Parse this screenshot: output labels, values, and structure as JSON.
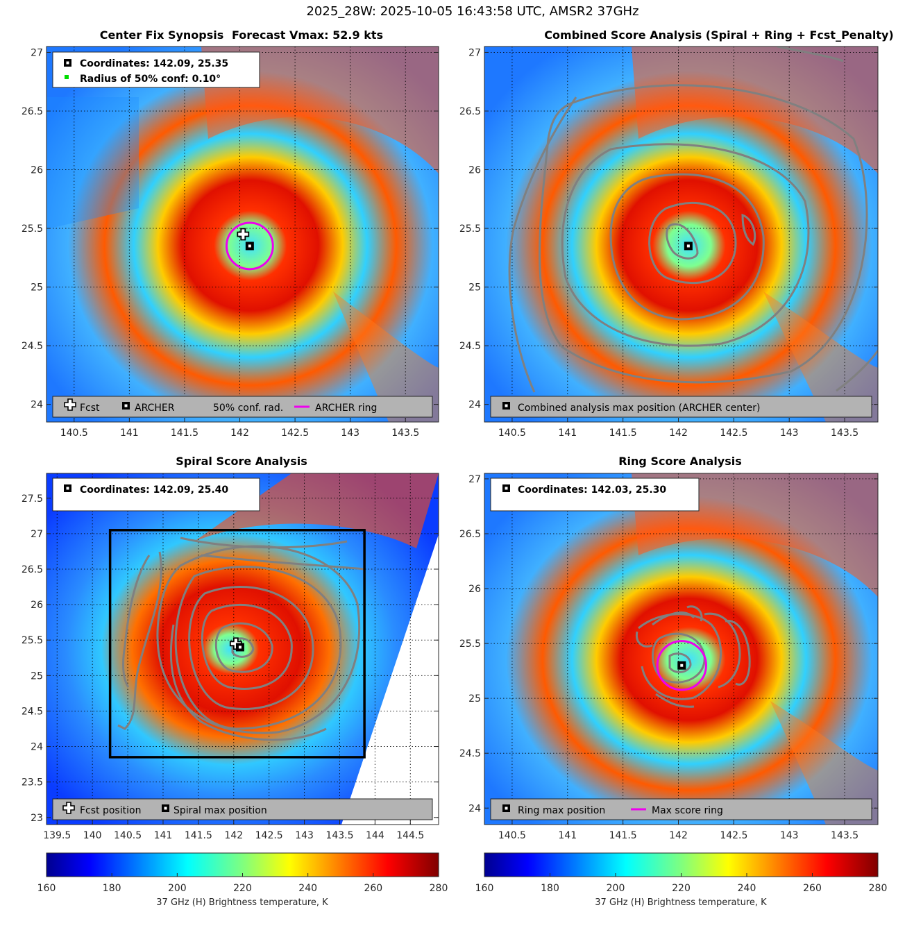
{
  "title": "2025_28W: 2025-10-05 16:43:58 UTC, AMSR2 37GHz",
  "panels": [
    {
      "key": "synopsis",
      "title_left": "Center Fix Synopsis",
      "title_right": "Forecast Vmax: 52.9 kts",
      "info_lines": [
        "Coordinates: 142.09, 25.35",
        "Radius of 50% conf: 0.10°"
      ],
      "legend": [
        "Fcst",
        "ARCHER",
        "50% conf. rad.",
        "ARCHER ring"
      ],
      "x_ticks": [
        "140.5",
        "141",
        "141.5",
        "142",
        "142.5",
        "143",
        "143.5"
      ],
      "y_ticks": [
        "24",
        "24.5",
        "25",
        "25.5",
        "26",
        "26.5",
        "27"
      ]
    },
    {
      "key": "combined",
      "title": "Combined Score Analysis (Spiral + Ring + Fcst_Penalty)",
      "legend": [
        "Combined analysis max position (ARCHER center)"
      ],
      "x_ticks": [
        "140.5",
        "141",
        "141.5",
        "142",
        "142.5",
        "143",
        "143.5"
      ],
      "y_ticks": [
        "24",
        "24.5",
        "25",
        "25.5",
        "26",
        "26.5",
        "27"
      ]
    },
    {
      "key": "spiral",
      "title": "Spiral Score Analysis",
      "info_lines": [
        "Coordinates: 142.09, 25.40"
      ],
      "legend": [
        "Fcst position",
        "Spiral max position"
      ],
      "x_ticks": [
        "139.5",
        "140",
        "140.5",
        "141",
        "141.5",
        "142",
        "142.5",
        "143",
        "143.5",
        "144",
        "144.5"
      ],
      "y_ticks": [
        "23",
        "23.5",
        "24",
        "24.5",
        "25",
        "25.5",
        "26",
        "26.5",
        "27",
        "27.5"
      ]
    },
    {
      "key": "ring",
      "title": "Ring Score Analysis",
      "info_lines": [
        "Coordinates: 142.03, 25.30"
      ],
      "legend": [
        "Ring max position",
        "Max score ring"
      ],
      "x_ticks": [
        "140.5",
        "141",
        "141.5",
        "142",
        "142.5",
        "143",
        "143.5"
      ],
      "y_ticks": [
        "24",
        "24.5",
        "25",
        "25.5",
        "26",
        "26.5",
        "27"
      ]
    }
  ],
  "colorbars": [
    {
      "ticks": [
        "160",
        "180",
        "200",
        "220",
        "240",
        "260",
        "280"
      ],
      "label": "37 GHz (H) Brightness temperature, K"
    },
    {
      "ticks": [
        "160",
        "180",
        "200",
        "220",
        "240",
        "260",
        "280"
      ],
      "label": "37 GHz (H) Brightness temperature, K"
    }
  ],
  "chart_data": [
    {
      "type": "heatmap",
      "name": "Center Fix Synopsis",
      "xlim": [
        140.25,
        143.8
      ],
      "ylim": [
        23.85,
        27.05
      ],
      "colormap": "jet",
      "clim": [
        160,
        280
      ],
      "markers": {
        "fcst": [
          142.03,
          25.45
        ],
        "archer": [
          142.09,
          25.35
        ]
      },
      "archer_ring": {
        "center": [
          142.09,
          25.35
        ],
        "radius_deg": 0.21
      },
      "colors": {
        "ring": "#ee00ee",
        "conf": "#00dd00"
      }
    },
    {
      "type": "heatmap",
      "name": "Combined Score Analysis",
      "xlim": [
        140.25,
        143.8
      ],
      "ylim": [
        23.85,
        27.05
      ],
      "colormap": "jet",
      "clim": [
        160,
        280
      ],
      "markers": {
        "archer": [
          142.09,
          25.35
        ]
      },
      "contour_color": "#808080"
    },
    {
      "type": "heatmap",
      "name": "Spiral Score Analysis",
      "xlim": [
        139.35,
        144.9
      ],
      "ylim": [
        22.9,
        27.85
      ],
      "colormap": "jet",
      "clim": [
        160,
        280
      ],
      "markers": {
        "fcst": [
          142.03,
          25.45
        ],
        "spiral_max": [
          142.09,
          25.4
        ]
      },
      "search_box": {
        "x": [
          140.25,
          143.85
        ],
        "y": [
          23.85,
          27.05
        ]
      },
      "contour_color": "#808080"
    },
    {
      "type": "heatmap",
      "name": "Ring Score Analysis",
      "xlim": [
        140.25,
        143.8
      ],
      "ylim": [
        23.85,
        27.05
      ],
      "colormap": "jet",
      "clim": [
        160,
        280
      ],
      "markers": {
        "ring_max": [
          142.03,
          25.3
        ]
      },
      "max_score_ring": {
        "center": [
          142.03,
          25.3
        ],
        "radius_deg": 0.22
      },
      "colors": {
        "ring": "#ee00ee"
      }
    }
  ]
}
